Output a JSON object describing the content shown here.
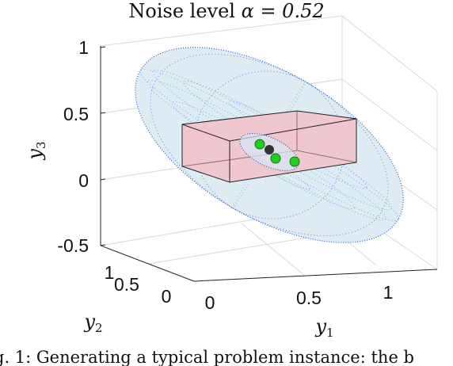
{
  "figure": {
    "title_prefix": "Noise level",
    "title_expr": "α = 0.52",
    "caption": "g. 1: Generating a typical problem instance: the b"
  },
  "chart_data": {
    "type": "scatter",
    "projection": "3d",
    "title": "Noise level α = 0.52",
    "axes": {
      "x": {
        "label": "y",
        "label_sub": "1",
        "lim": [
          0,
          1
        ],
        "ticks": [
          "0",
          "0.5",
          "1"
        ]
      },
      "y": {
        "label": "y",
        "label_sub": "2",
        "lim": [
          0,
          1
        ],
        "ticks": [
          "0",
          "0.5",
          "1"
        ]
      },
      "z": {
        "label": "y",
        "label_sub": "3",
        "lim": [
          -0.5,
          1
        ],
        "ticks": [
          "-0.5",
          "0",
          "0.5",
          "1"
        ]
      }
    },
    "grid": true,
    "objects": [
      {
        "kind": "ellipsoid",
        "role": "outer",
        "color_fill": "#dcecf2",
        "color_points": "#2a5bd7"
      },
      {
        "kind": "ellipsoid",
        "role": "inner",
        "color_fill": "#d6e8f5",
        "color_points": "#2a5bd7"
      },
      {
        "kind": "box",
        "color_fill": "#f0c6cf",
        "edge": "#222222"
      }
    ],
    "series": [
      {
        "marker": "circle",
        "color": "#22cc22",
        "points": 3
      },
      {
        "marker": "circle",
        "color": "#333333",
        "points": 1
      }
    ]
  }
}
